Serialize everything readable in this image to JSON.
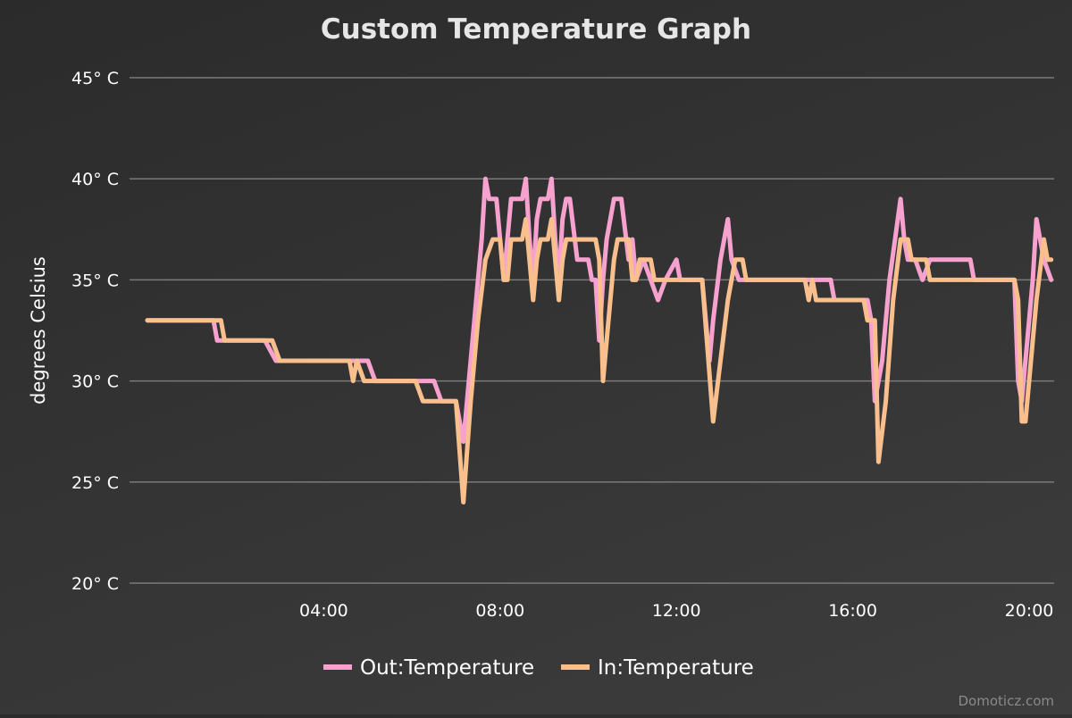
{
  "chart_data": {
    "type": "line",
    "title": "Custom Temperature Graph",
    "ylabel": "degrees Celsius",
    "y_unit": "° C",
    "ylim": [
      20,
      45
    ],
    "y_ticks": [
      {
        "value": 20,
        "label": "20° C"
      },
      {
        "value": 25,
        "label": "25° C"
      },
      {
        "value": 30,
        "label": "30° C"
      },
      {
        "value": 35,
        "label": "35° C"
      },
      {
        "value": 40,
        "label": "40° C"
      },
      {
        "value": 45,
        "label": "45° C"
      }
    ],
    "xlim": [
      "00:00",
      "20:30"
    ],
    "x_ticks": [
      {
        "value": "04:00",
        "label": "04:00"
      },
      {
        "value": "08:00",
        "label": "08:00"
      },
      {
        "value": "12:00",
        "label": "12:00"
      },
      {
        "value": "16:00",
        "label": "16:00"
      },
      {
        "value": "20:00",
        "label": "20:00"
      }
    ],
    "grid": true,
    "legend": "bottom-center",
    "series": [
      {
        "name": "Out:Temperature",
        "color": "#f7a1cf",
        "points": [
          [
            "00:00",
            33
          ],
          [
            "01:30",
            33
          ],
          [
            "01:35",
            32
          ],
          [
            "02:40",
            32
          ],
          [
            "02:55",
            31
          ],
          [
            "04:30",
            31
          ],
          [
            "04:35",
            31
          ],
          [
            "05:00",
            31
          ],
          [
            "05:10",
            30
          ],
          [
            "06:30",
            30
          ],
          [
            "06:40",
            29
          ],
          [
            "07:00",
            29
          ],
          [
            "07:10",
            27
          ],
          [
            "07:15",
            29
          ],
          [
            "07:25",
            33
          ],
          [
            "07:35",
            37
          ],
          [
            "07:40",
            40
          ],
          [
            "07:45",
            39
          ],
          [
            "07:55",
            39
          ],
          [
            "08:00",
            37
          ],
          [
            "08:05",
            35
          ],
          [
            "08:10",
            37
          ],
          [
            "08:15",
            39
          ],
          [
            "08:30",
            39
          ],
          [
            "08:35",
            40
          ],
          [
            "08:40",
            37
          ],
          [
            "08:45",
            35
          ],
          [
            "08:50",
            38
          ],
          [
            "08:55",
            39
          ],
          [
            "09:05",
            39
          ],
          [
            "09:10",
            40
          ],
          [
            "09:15",
            37
          ],
          [
            "09:20",
            35
          ],
          [
            "09:25",
            38
          ],
          [
            "09:30",
            39
          ],
          [
            "09:35",
            39
          ],
          [
            "09:45",
            36
          ],
          [
            "10:00",
            36
          ],
          [
            "10:05",
            35
          ],
          [
            "10:10",
            35
          ],
          [
            "10:15",
            32
          ],
          [
            "10:20",
            35
          ],
          [
            "10:25",
            37
          ],
          [
            "10:35",
            39
          ],
          [
            "10:45",
            39
          ],
          [
            "10:55",
            36
          ],
          [
            "11:00",
            37
          ],
          [
            "11:05",
            35
          ],
          [
            "11:15",
            36
          ],
          [
            "11:25",
            35
          ],
          [
            "11:35",
            34
          ],
          [
            "11:45",
            35
          ],
          [
            "12:00",
            36
          ],
          [
            "12:05",
            35
          ],
          [
            "12:35",
            35
          ],
          [
            "12:45",
            31
          ],
          [
            "12:50",
            33
          ],
          [
            "13:00",
            36
          ],
          [
            "13:10",
            38
          ],
          [
            "13:15",
            36
          ],
          [
            "13:25",
            35
          ],
          [
            "14:55",
            35
          ],
          [
            "15:00",
            35
          ],
          [
            "15:30",
            35
          ],
          [
            "15:35",
            34
          ],
          [
            "16:20",
            34
          ],
          [
            "16:25",
            33
          ],
          [
            "16:30",
            29
          ],
          [
            "16:40",
            31
          ],
          [
            "16:50",
            35
          ],
          [
            "17:05",
            39
          ],
          [
            "17:10",
            37
          ],
          [
            "17:15",
            36
          ],
          [
            "17:25",
            36
          ],
          [
            "17:35",
            35
          ],
          [
            "17:45",
            36
          ],
          [
            "18:40",
            36
          ],
          [
            "18:45",
            35
          ],
          [
            "19:40",
            35
          ],
          [
            "19:45",
            30
          ],
          [
            "19:50",
            29
          ],
          [
            "20:05",
            35
          ],
          [
            "20:10",
            38
          ],
          [
            "20:15",
            37
          ],
          [
            "20:20",
            36
          ],
          [
            "20:30",
            35
          ]
        ]
      },
      {
        "name": "In:Temperature",
        "color": "#f9c08e",
        "points": [
          [
            "00:00",
            33
          ],
          [
            "01:40",
            33
          ],
          [
            "01:45",
            32
          ],
          [
            "02:50",
            32
          ],
          [
            "03:00",
            31
          ],
          [
            "04:35",
            31
          ],
          [
            "04:40",
            30
          ],
          [
            "04:45",
            31
          ],
          [
            "04:55",
            30
          ],
          [
            "06:05",
            30
          ],
          [
            "06:15",
            29
          ],
          [
            "07:00",
            29
          ],
          [
            "07:10",
            24
          ],
          [
            "07:20",
            29
          ],
          [
            "07:30",
            33
          ],
          [
            "07:40",
            36
          ],
          [
            "07:50",
            37
          ],
          [
            "08:00",
            37
          ],
          [
            "08:05",
            35
          ],
          [
            "08:10",
            35
          ],
          [
            "08:15",
            37
          ],
          [
            "08:30",
            37
          ],
          [
            "08:35",
            38
          ],
          [
            "08:40",
            36
          ],
          [
            "08:45",
            34
          ],
          [
            "08:50",
            36
          ],
          [
            "08:55",
            37
          ],
          [
            "09:05",
            37
          ],
          [
            "09:10",
            38
          ],
          [
            "09:15",
            36
          ],
          [
            "09:20",
            34
          ],
          [
            "09:25",
            36
          ],
          [
            "09:30",
            37
          ],
          [
            "10:00",
            37
          ],
          [
            "10:10",
            37
          ],
          [
            "10:15",
            36
          ],
          [
            "10:20",
            30
          ],
          [
            "10:30",
            34
          ],
          [
            "10:35",
            36
          ],
          [
            "10:40",
            37
          ],
          [
            "10:55",
            37
          ],
          [
            "11:00",
            35
          ],
          [
            "11:05",
            35
          ],
          [
            "11:10",
            36
          ],
          [
            "11:25",
            36
          ],
          [
            "11:30",
            35
          ],
          [
            "12:35",
            35
          ],
          [
            "12:50",
            28
          ],
          [
            "13:00",
            31
          ],
          [
            "13:10",
            34
          ],
          [
            "13:20",
            36
          ],
          [
            "13:30",
            36
          ],
          [
            "13:35",
            35
          ],
          [
            "14:55",
            35
          ],
          [
            "15:00",
            34
          ],
          [
            "15:05",
            35
          ],
          [
            "15:10",
            34
          ],
          [
            "16:15",
            34
          ],
          [
            "16:20",
            33
          ],
          [
            "16:30",
            33
          ],
          [
            "16:35",
            26
          ],
          [
            "16:45",
            29
          ],
          [
            "16:55",
            34
          ],
          [
            "17:05",
            37
          ],
          [
            "17:15",
            37
          ],
          [
            "17:20",
            36
          ],
          [
            "17:40",
            36
          ],
          [
            "17:45",
            35
          ],
          [
            "19:40",
            35
          ],
          [
            "19:45",
            34
          ],
          [
            "19:50",
            28
          ],
          [
            "19:55",
            28
          ],
          [
            "20:10",
            34
          ],
          [
            "20:20",
            37
          ],
          [
            "20:25",
            36
          ],
          [
            "20:30",
            36
          ]
        ]
      }
    ]
  },
  "credits": "Domoticz.com"
}
